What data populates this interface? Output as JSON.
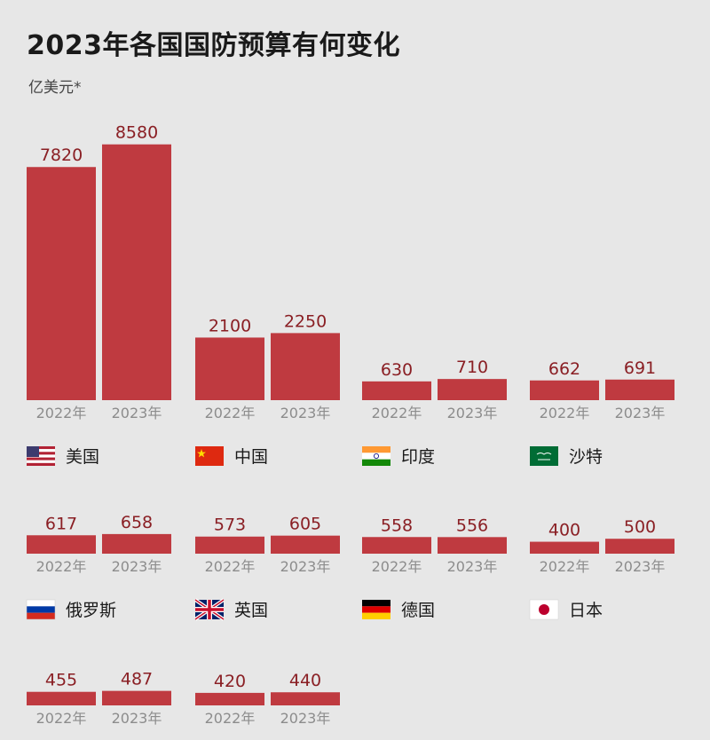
{
  "title": "2023年各国国防预算有何变化",
  "subtitle": "亿美元*",
  "colors": {
    "bar": "#bf3a40",
    "value_text": "#8a1f24",
    "year_text": "#8c8c8c",
    "background": "#e7e7e7"
  },
  "chart_data": {
    "type": "bar",
    "unit": "亿美元",
    "categories": [
      "2022年",
      "2023年"
    ],
    "groups": [
      {
        "country": "美国",
        "flag": "us-flag-icon",
        "values": [
          7820,
          8580
        ]
      },
      {
        "country": "中国",
        "flag": "cn-flag-icon",
        "values": [
          2100,
          2250
        ]
      },
      {
        "country": "印度",
        "flag": "in-flag-icon",
        "values": [
          630,
          710
        ]
      },
      {
        "country": "沙特",
        "flag": "sa-flag-icon",
        "values": [
          662,
          691
        ]
      },
      {
        "country": "俄罗斯",
        "flag": "ru-flag-icon",
        "values": [
          617,
          658
        ]
      },
      {
        "country": "英国",
        "flag": "gb-flag-icon",
        "values": [
          573,
          605
        ]
      },
      {
        "country": "德国",
        "flag": "de-flag-icon",
        "values": [
          558,
          556
        ]
      },
      {
        "country": "日本",
        "flag": "jp-flag-icon",
        "values": [
          400,
          500
        ]
      },
      {
        "country": "",
        "flag": "",
        "values": [
          455,
          487
        ]
      },
      {
        "country": "",
        "flag": "",
        "values": [
          420,
          440
        ]
      }
    ]
  }
}
